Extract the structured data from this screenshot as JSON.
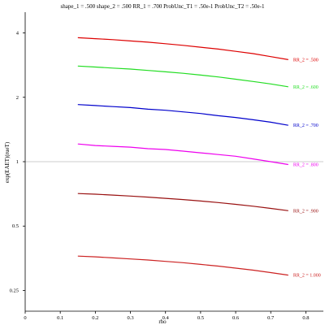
{
  "chart_data": {
    "type": "line",
    "title": "shape_1 = .500  shape_2 = .500  RR_1 = .700  ProbUnc_T1 = .50e-1  ProbUnc_T2 = .50e-1",
    "xlabel": "rho",
    "ylabel": "exp(EAET)(rueT)",
    "xlim": [
      0,
      0.85
    ],
    "ylim": [
      0.2,
      5.0
    ],
    "y_scale": "log",
    "x_ticks": [
      "0",
      "0.1",
      "0.2",
      "0.3",
      "0.4",
      "0.5",
      "0.6",
      "0.7",
      "0.8"
    ],
    "y_ticks": [
      "0.25",
      "0.5",
      "1",
      "2",
      "4"
    ],
    "reference_line_y": 1,
    "x": [
      0.15,
      0.2,
      0.25,
      0.3,
      0.35,
      0.4,
      0.45,
      0.5,
      0.55,
      0.6,
      0.65,
      0.7,
      0.75
    ],
    "series": [
      {
        "name": "RR_2 = .500",
        "color": "#dd0000",
        "values": [
          3.8,
          3.76,
          3.72,
          3.67,
          3.62,
          3.56,
          3.5,
          3.43,
          3.36,
          3.28,
          3.2,
          3.1,
          3.0
        ]
      },
      {
        "name": "RR_2 = .600",
        "color": "#22dd22",
        "values": [
          2.8,
          2.77,
          2.74,
          2.71,
          2.67,
          2.63,
          2.59,
          2.54,
          2.49,
          2.43,
          2.37,
          2.31,
          2.24
        ]
      },
      {
        "name": "RR_2 = .700",
        "color": "#0000cc",
        "values": [
          1.85,
          1.83,
          1.81,
          1.79,
          1.76,
          1.74,
          1.71,
          1.68,
          1.64,
          1.61,
          1.57,
          1.53,
          1.48
        ]
      },
      {
        "name": "RR_2 = .800",
        "color": "#ee00ee",
        "values": [
          1.21,
          1.19,
          1.18,
          1.17,
          1.15,
          1.14,
          1.12,
          1.1,
          1.08,
          1.06,
          1.03,
          1.0,
          0.97
        ]
      },
      {
        "name": "RR_2 = .900",
        "color": "#991111",
        "values": [
          0.71,
          0.705,
          0.698,
          0.691,
          0.683,
          0.674,
          0.665,
          0.655,
          0.644,
          0.632,
          0.619,
          0.605,
          0.59
        ]
      },
      {
        "name": "RR_2 = 1.000",
        "color": "#cc2222",
        "values": [
          0.362,
          0.359,
          0.355,
          0.351,
          0.347,
          0.342,
          0.337,
          0.331,
          0.325,
          0.318,
          0.311,
          0.303,
          0.295
        ]
      }
    ]
  }
}
